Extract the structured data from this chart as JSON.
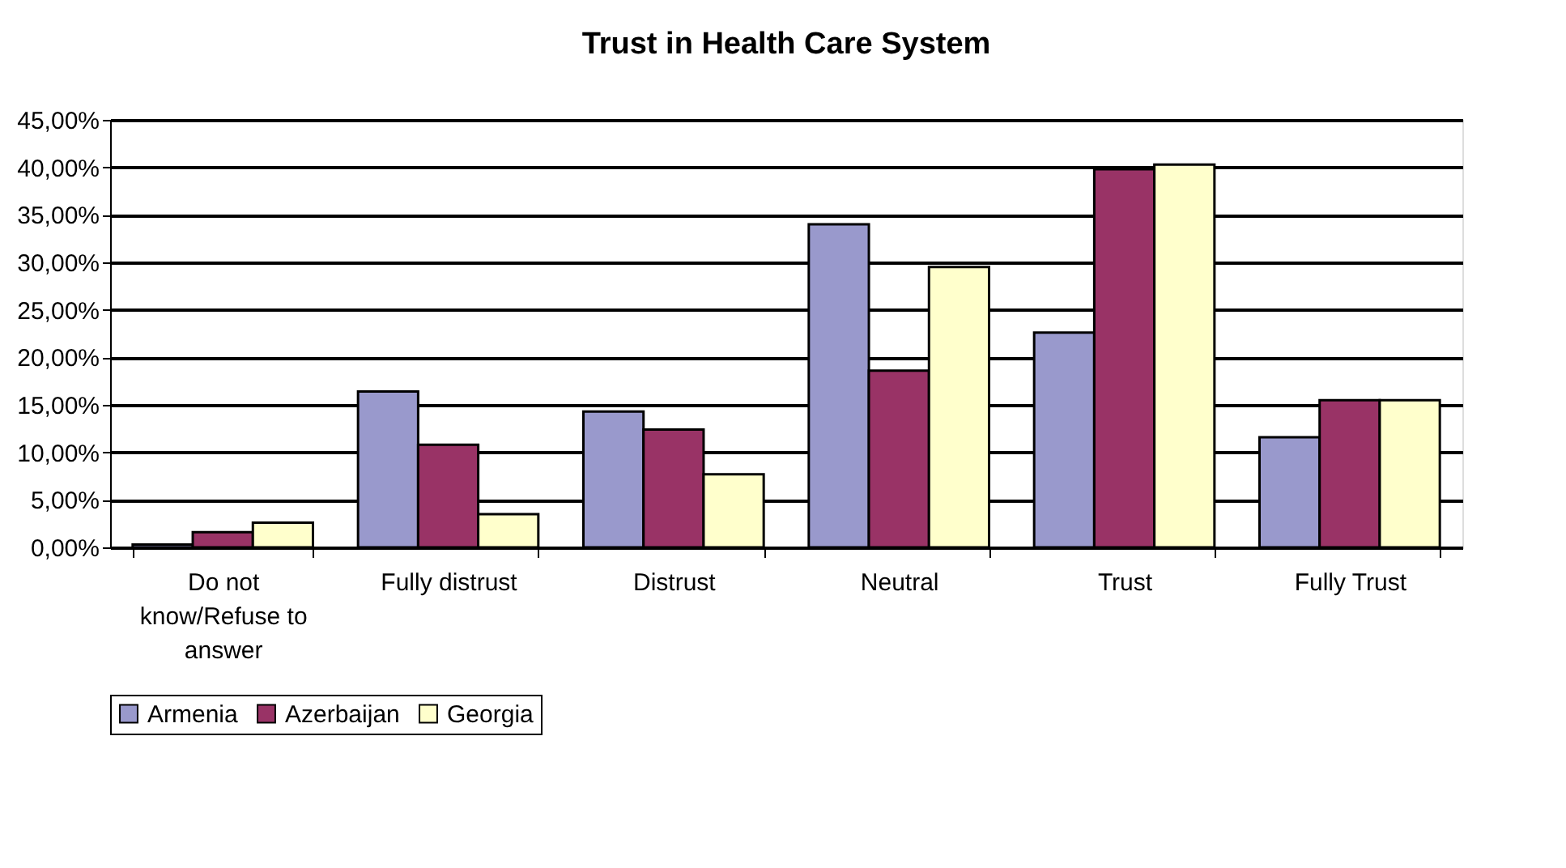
{
  "chart_data": {
    "type": "bar",
    "title": "Trust in Health Care System",
    "categories": [
      "Do not know/Refuse to answer",
      "Fully distrust",
      "Distrust",
      "Neutral",
      "Trust",
      "Fully Trust"
    ],
    "series": [
      {
        "name": "Armenia",
        "color": "#9999cc",
        "values": [
          0.3,
          16.4,
          14.3,
          34.0,
          22.6,
          11.6
        ]
      },
      {
        "name": "Azerbaijan",
        "color": "#993366",
        "values": [
          1.6,
          10.8,
          12.4,
          18.6,
          39.8,
          15.5
        ]
      },
      {
        "name": "Georgia",
        "color": "#ffffcc",
        "values": [
          2.6,
          3.5,
          7.7,
          29.5,
          40.3,
          15.5
        ]
      }
    ],
    "ylim": [
      0,
      45
    ],
    "yticks": [
      {
        "value": 0,
        "label": "0,00%"
      },
      {
        "value": 5,
        "label": "5,00%"
      },
      {
        "value": 10,
        "label": "10,00%"
      },
      {
        "value": 15,
        "label": "15,00%"
      },
      {
        "value": 20,
        "label": "20,00%"
      },
      {
        "value": 25,
        "label": "25,00%"
      },
      {
        "value": 30,
        "label": "30,00%"
      },
      {
        "value": 35,
        "label": "35,00%"
      },
      {
        "value": 40,
        "label": "40,00%"
      },
      {
        "value": 45,
        "label": "45,00%"
      }
    ],
    "grid": "y",
    "legend": "bottom"
  }
}
